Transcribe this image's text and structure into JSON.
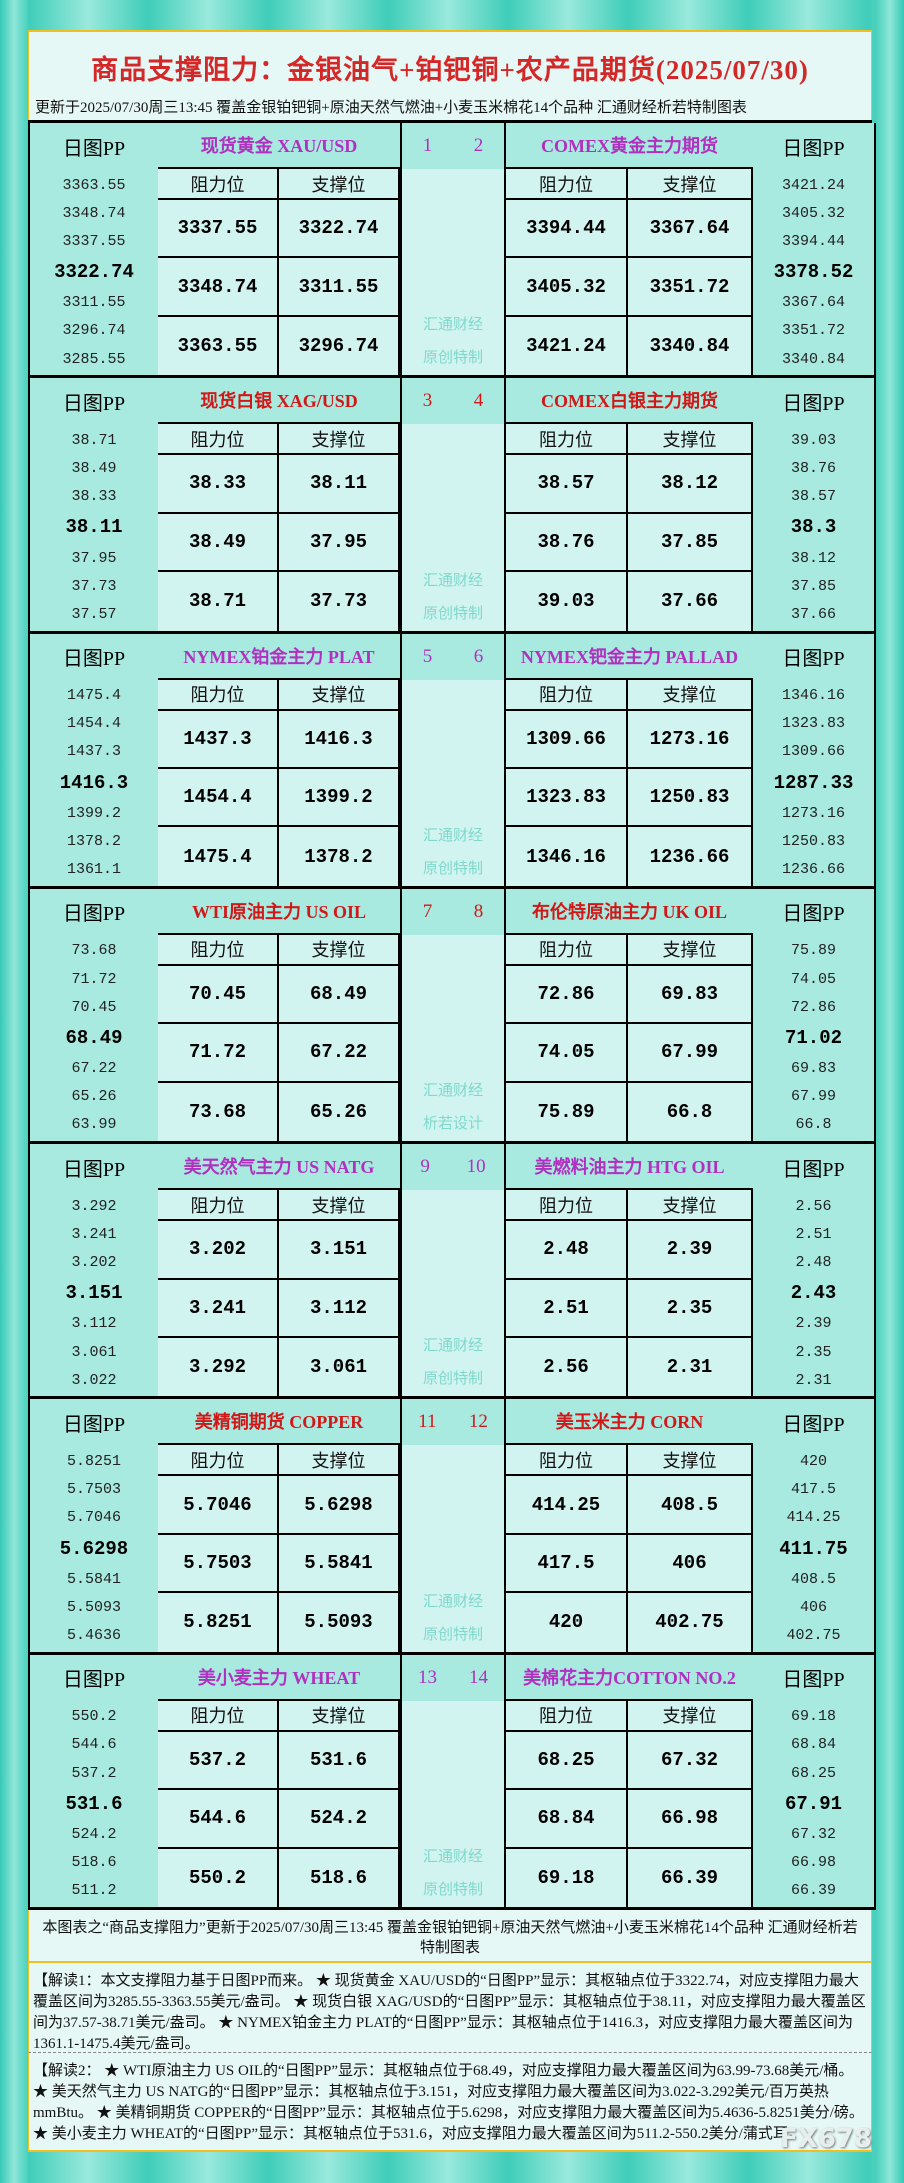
{
  "header": {
    "title": "商品支撑阻力：金银油气+铂钯铜+农产品期货(2025/07/30)",
    "subtitle": "更新于2025/07/30周三13:45 覆盖金银铂钯铜+原油天然气燃油+小麦玉米棉花14个品种 汇通财经析若特制图表"
  },
  "labels": {
    "pp": "日图PP",
    "resistance": "阻力位",
    "support": "支撑位"
  },
  "colors": {
    "odd_name": "#b030c0",
    "even_name": "#d01818",
    "title": "#d42828",
    "pp_bg": "#a8eadf",
    "cell_bg": "#d2f4f0"
  },
  "blocks": [
    {
      "watermark": [
        "汇通财经",
        "原创特制"
      ],
      "left": {
        "num": "1",
        "name": "现货黄金 XAU/USD",
        "pp": [
          "3363.55",
          "3348.74",
          "3337.55",
          "3322.74",
          "3311.55",
          "3296.74",
          "3285.55"
        ],
        "res": [
          "3337.55",
          "3348.74",
          "3363.55"
        ],
        "sup": [
          "3322.74",
          "3311.55",
          "3296.74"
        ]
      },
      "right": {
        "num": "2",
        "name": "COMEX黄金主力期货",
        "pp": [
          "3421.24",
          "3405.32",
          "3394.44",
          "3378.52",
          "3367.64",
          "3351.72",
          "3340.84"
        ],
        "res": [
          "3394.44",
          "3405.32",
          "3421.24"
        ],
        "sup": [
          "3367.64",
          "3351.72",
          "3340.84"
        ]
      }
    },
    {
      "watermark": [
        "汇通财经",
        "原创特制"
      ],
      "left": {
        "num": "3",
        "name": "现货白银 XAG/USD",
        "pp": [
          "38.71",
          "38.49",
          "38.33",
          "38.11",
          "37.95",
          "37.73",
          "37.57"
        ],
        "res": [
          "38.33",
          "38.49",
          "38.71"
        ],
        "sup": [
          "38.11",
          "37.95",
          "37.73"
        ]
      },
      "right": {
        "num": "4",
        "name": "COMEX白银主力期货",
        "pp": [
          "39.03",
          "38.76",
          "38.57",
          "38.3",
          "38.12",
          "37.85",
          "37.66"
        ],
        "res": [
          "38.57",
          "38.76",
          "39.03"
        ],
        "sup": [
          "38.12",
          "37.85",
          "37.66"
        ]
      }
    },
    {
      "watermark": [
        "汇通财经",
        "原创特制"
      ],
      "left": {
        "num": "5",
        "name": "NYMEX铂金主力 PLAT",
        "pp": [
          "1475.4",
          "1454.4",
          "1437.3",
          "1416.3",
          "1399.2",
          "1378.2",
          "1361.1"
        ],
        "res": [
          "1437.3",
          "1454.4",
          "1475.4"
        ],
        "sup": [
          "1416.3",
          "1399.2",
          "1378.2"
        ]
      },
      "right": {
        "num": "6",
        "name": "NYMEX钯金主力 PALLAD",
        "pp": [
          "1346.16",
          "1323.83",
          "1309.66",
          "1287.33",
          "1273.16",
          "1250.83",
          "1236.66"
        ],
        "res": [
          "1309.66",
          "1323.83",
          "1346.16"
        ],
        "sup": [
          "1273.16",
          "1250.83",
          "1236.66"
        ]
      }
    },
    {
      "watermark": [
        "汇通财经",
        "析若设计"
      ],
      "left": {
        "num": "7",
        "name": "WTI原油主力 US OIL",
        "pp": [
          "73.68",
          "71.72",
          "70.45",
          "68.49",
          "67.22",
          "65.26",
          "63.99"
        ],
        "res": [
          "70.45",
          "71.72",
          "73.68"
        ],
        "sup": [
          "68.49",
          "67.22",
          "65.26"
        ]
      },
      "right": {
        "num": "8",
        "name": "布伦特原油主力 UK OIL",
        "pp": [
          "75.89",
          "74.05",
          "72.86",
          "71.02",
          "69.83",
          "67.99",
          "66.8"
        ],
        "res": [
          "72.86",
          "74.05",
          "75.89"
        ],
        "sup": [
          "69.83",
          "67.99",
          "66.8"
        ]
      }
    },
    {
      "watermark": [
        "汇通财经",
        "原创特制"
      ],
      "left": {
        "num": "9",
        "name": "美天然气主力 US NATG",
        "pp": [
          "3.292",
          "3.241",
          "3.202",
          "3.151",
          "3.112",
          "3.061",
          "3.022"
        ],
        "res": [
          "3.202",
          "3.241",
          "3.292"
        ],
        "sup": [
          "3.151",
          "3.112",
          "3.061"
        ]
      },
      "right": {
        "num": "10",
        "name": "美燃料油主力 HTG OIL",
        "pp": [
          "2.56",
          "2.51",
          "2.48",
          "2.43",
          "2.39",
          "2.35",
          "2.31"
        ],
        "res": [
          "2.48",
          "2.51",
          "2.56"
        ],
        "sup": [
          "2.39",
          "2.35",
          "2.31"
        ]
      }
    },
    {
      "watermark": [
        "汇通财经",
        "原创特制"
      ],
      "left": {
        "num": "11",
        "name": "美精铜期货 COPPER",
        "pp": [
          "5.8251",
          "5.7503",
          "5.7046",
          "5.6298",
          "5.5841",
          "5.5093",
          "5.4636"
        ],
        "res": [
          "5.7046",
          "5.7503",
          "5.8251"
        ],
        "sup": [
          "5.6298",
          "5.5841",
          "5.5093"
        ]
      },
      "right": {
        "num": "12",
        "name": "美玉米主力 CORN",
        "pp": [
          "420",
          "417.5",
          "414.25",
          "411.75",
          "408.5",
          "406",
          "402.75"
        ],
        "res": [
          "414.25",
          "417.5",
          "420"
        ],
        "sup": [
          "408.5",
          "406",
          "402.75"
        ]
      }
    },
    {
      "watermark": [
        "汇通财经",
        "原创特制"
      ],
      "left": {
        "num": "13",
        "name": "美小麦主力 WHEAT",
        "pp": [
          "550.2",
          "544.6",
          "537.2",
          "531.6",
          "524.2",
          "518.6",
          "511.2"
        ],
        "res": [
          "537.2",
          "544.6",
          "550.2"
        ],
        "sup": [
          "531.6",
          "524.2",
          "518.6"
        ]
      },
      "right": {
        "num": "14",
        "name": "美棉花主力COTTON NO.2",
        "pp": [
          "69.18",
          "68.84",
          "68.25",
          "67.91",
          "67.32",
          "66.98",
          "66.39"
        ],
        "res": [
          "68.25",
          "68.84",
          "69.18"
        ],
        "sup": [
          "67.32",
          "66.98",
          "66.39"
        ]
      }
    }
  ],
  "footer": {
    "note": "本图表之“商品支撑阻力”更新于2025/07/30周三13:45 覆盖金银铂钯铜+原油天然气燃油+小麦玉米棉花14个品种 汇通财经析若特制图表",
    "explain1": "【解读1：本文支撑阻力基于日图PP而来。 ★ 现货黄金 XAU/USD的“日图PP”显示：其枢轴点位于3322.74，对应支撑阻力最大覆盖区间为3285.55-3363.55美元/盎司。 ★ 现货白银 XAG/USD的“日图PP”显示：其枢轴点位于38.11，对应支撑阻力最大覆盖区间为37.57-38.71美元/盎司。 ★ NYMEX铂金主力 PLAT的“日图PP”显示：其枢轴点位于1416.3，对应支撑阻力最大覆盖区间为1361.1-1475.4美元/盎司。",
    "explain2": "【解读2： ★ WTI原油主力 US OIL的“日图PP”显示：其枢轴点位于68.49，对应支撑阻力最大覆盖区间为63.99-73.68美元/桶。 ★ 美天然气主力 US NATG的“日图PP”显示：其枢轴点位于3.151，对应支撑阻力最大覆盖区间为3.022-3.292美元/百万英热mmBtu。 ★ 美精铜期货 COPPER的“日图PP”显示：其枢轴点位于5.6298，对应支撑阻力最大覆盖区间为5.4636-5.8251美分/磅。 ★ 美小麦主力 WHEAT的“日图PP”显示：其枢轴点位于531.6，对应支撑阻力最大覆盖区间为511.2-550.2美分/蒲式耳。",
    "logo": "FX678"
  }
}
